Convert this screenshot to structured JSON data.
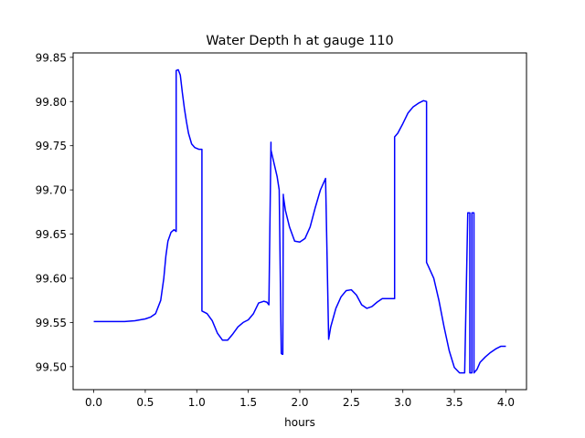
{
  "chart_data": {
    "type": "line",
    "title": "Water Depth h at gauge 110",
    "xlabel": "hours",
    "ylabel": "",
    "xlim": [
      -0.2,
      4.2
    ],
    "ylim": [
      99.474,
      99.855
    ],
    "xticks": [
      0.0,
      0.5,
      1.0,
      1.5,
      2.0,
      2.5,
      3.0,
      3.5,
      4.0
    ],
    "xtick_labels": [
      "0.0",
      "0.5",
      "1.0",
      "1.5",
      "2.0",
      "2.5",
      "3.0",
      "3.5",
      "4.0"
    ],
    "yticks": [
      99.5,
      99.55,
      99.6,
      99.65,
      99.7,
      99.75,
      99.8,
      99.85
    ],
    "ytick_labels": [
      "99.50",
      "99.55",
      "99.60",
      "99.65",
      "99.70",
      "99.75",
      "99.80",
      "99.85"
    ],
    "grid": false,
    "colors": {
      "line": "#0000ff",
      "axes": "#000000",
      "background": "#ffffff"
    },
    "series": [
      {
        "x": [
          0.0,
          0.3,
          0.4,
          0.5,
          0.55,
          0.6,
          0.65,
          0.68,
          0.7,
          0.72,
          0.75,
          0.78,
          0.8,
          0.8,
          0.82,
          0.84,
          0.86,
          0.88,
          0.9,
          0.92,
          0.95,
          0.98,
          1.02,
          1.05,
          1.05,
          1.1,
          1.15,
          1.2,
          1.25,
          1.3,
          1.35,
          1.4,
          1.45,
          1.5,
          1.55,
          1.6,
          1.65,
          1.68,
          1.7,
          1.72,
          1.72,
          1.75,
          1.78,
          1.8,
          1.82,
          1.83,
          1.835,
          1.84,
          1.84,
          1.86,
          1.9,
          1.95,
          2.0,
          2.05,
          2.1,
          2.15,
          2.2,
          2.25,
          2.28,
          2.28,
          2.3,
          2.35,
          2.4,
          2.45,
          2.5,
          2.55,
          2.6,
          2.65,
          2.7,
          2.75,
          2.8,
          2.85,
          2.9,
          2.92,
          2.92,
          2.95,
          3.0,
          3.05,
          3.1,
          3.15,
          3.2,
          3.23,
          3.23,
          3.25,
          3.3,
          3.35,
          3.4,
          3.45,
          3.5,
          3.55,
          3.6,
          3.63,
          3.65,
          3.65,
          3.67,
          3.67,
          3.69,
          3.69,
          3.72,
          3.75,
          3.8,
          3.85,
          3.9,
          3.95,
          4.0
        ],
        "y": [
          99.551,
          99.551,
          99.552,
          99.554,
          99.556,
          99.56,
          99.575,
          99.6,
          99.625,
          99.642,
          99.652,
          99.655,
          99.653,
          99.835,
          99.836,
          99.83,
          99.81,
          99.792,
          99.777,
          99.764,
          99.752,
          99.748,
          99.746,
          99.746,
          99.563,
          99.56,
          99.552,
          99.538,
          99.53,
          99.53,
          99.537,
          99.545,
          99.55,
          99.553,
          99.56,
          99.572,
          99.574,
          99.573,
          99.57,
          99.754,
          99.745,
          99.73,
          99.715,
          99.7,
          99.515,
          99.514,
          99.514,
          99.695,
          99.693,
          99.677,
          99.658,
          99.642,
          99.641,
          99.645,
          99.658,
          99.68,
          99.7,
          99.713,
          99.531,
          99.531,
          99.545,
          99.566,
          99.579,
          99.586,
          99.587,
          99.581,
          99.57,
          99.566,
          99.568,
          99.573,
          99.577,
          99.577,
          99.577,
          99.577,
          99.76,
          99.764,
          99.775,
          99.787,
          99.794,
          99.798,
          99.801,
          99.8,
          99.618,
          99.613,
          99.6,
          99.575,
          99.545,
          99.518,
          99.499,
          99.493,
          99.493,
          99.674,
          99.674,
          99.493,
          99.493,
          99.674,
          99.674,
          99.493,
          99.497,
          99.505,
          99.511,
          99.516,
          99.52,
          99.523,
          99.523
        ]
      }
    ]
  }
}
